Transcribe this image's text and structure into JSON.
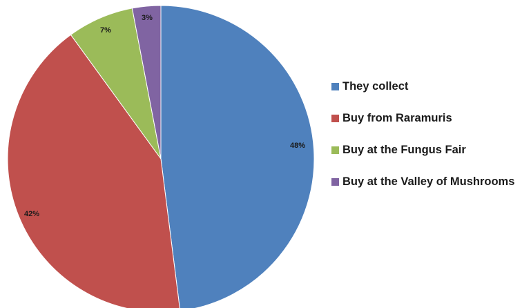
{
  "chart_data": {
    "type": "pie",
    "title": "",
    "categories": [
      "They collect",
      "Buy from Raramuris",
      "Buy at the Fungus Fair",
      "Buy at the Valley of Mushrooms"
    ],
    "values": [
      48,
      42,
      7,
      3
    ],
    "data_labels": [
      "48%",
      "42%",
      "7%",
      "3%"
    ],
    "colors": [
      "#4f81bd",
      "#c0504d",
      "#9bbb59",
      "#8064a2"
    ],
    "start_angle": "12 o'clock",
    "direction": "clockwise",
    "legend_position": "right"
  }
}
